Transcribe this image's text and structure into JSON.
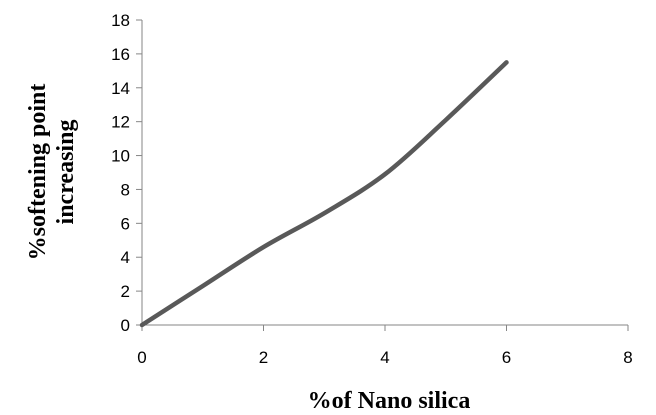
{
  "chart_data": {
    "type": "line",
    "title": "",
    "xlabel": "%of Nano silica",
    "ylabel_lines": [
      "%softening point",
      "increasing"
    ],
    "xlim": [
      0,
      8
    ],
    "ylim": [
      0,
      18
    ],
    "xticks": [
      0,
      2,
      4,
      6,
      8
    ],
    "yticks": [
      0,
      2,
      4,
      6,
      8,
      10,
      12,
      14,
      16,
      18
    ],
    "grid": false,
    "legend": "none",
    "series": [
      {
        "color": "#595959",
        "x": [
          0,
          1,
          2,
          3,
          4,
          5,
          6
        ],
        "y": [
          0,
          2.3,
          4.6,
          6.6,
          8.9,
          12.1,
          15.5
        ]
      }
    ]
  }
}
